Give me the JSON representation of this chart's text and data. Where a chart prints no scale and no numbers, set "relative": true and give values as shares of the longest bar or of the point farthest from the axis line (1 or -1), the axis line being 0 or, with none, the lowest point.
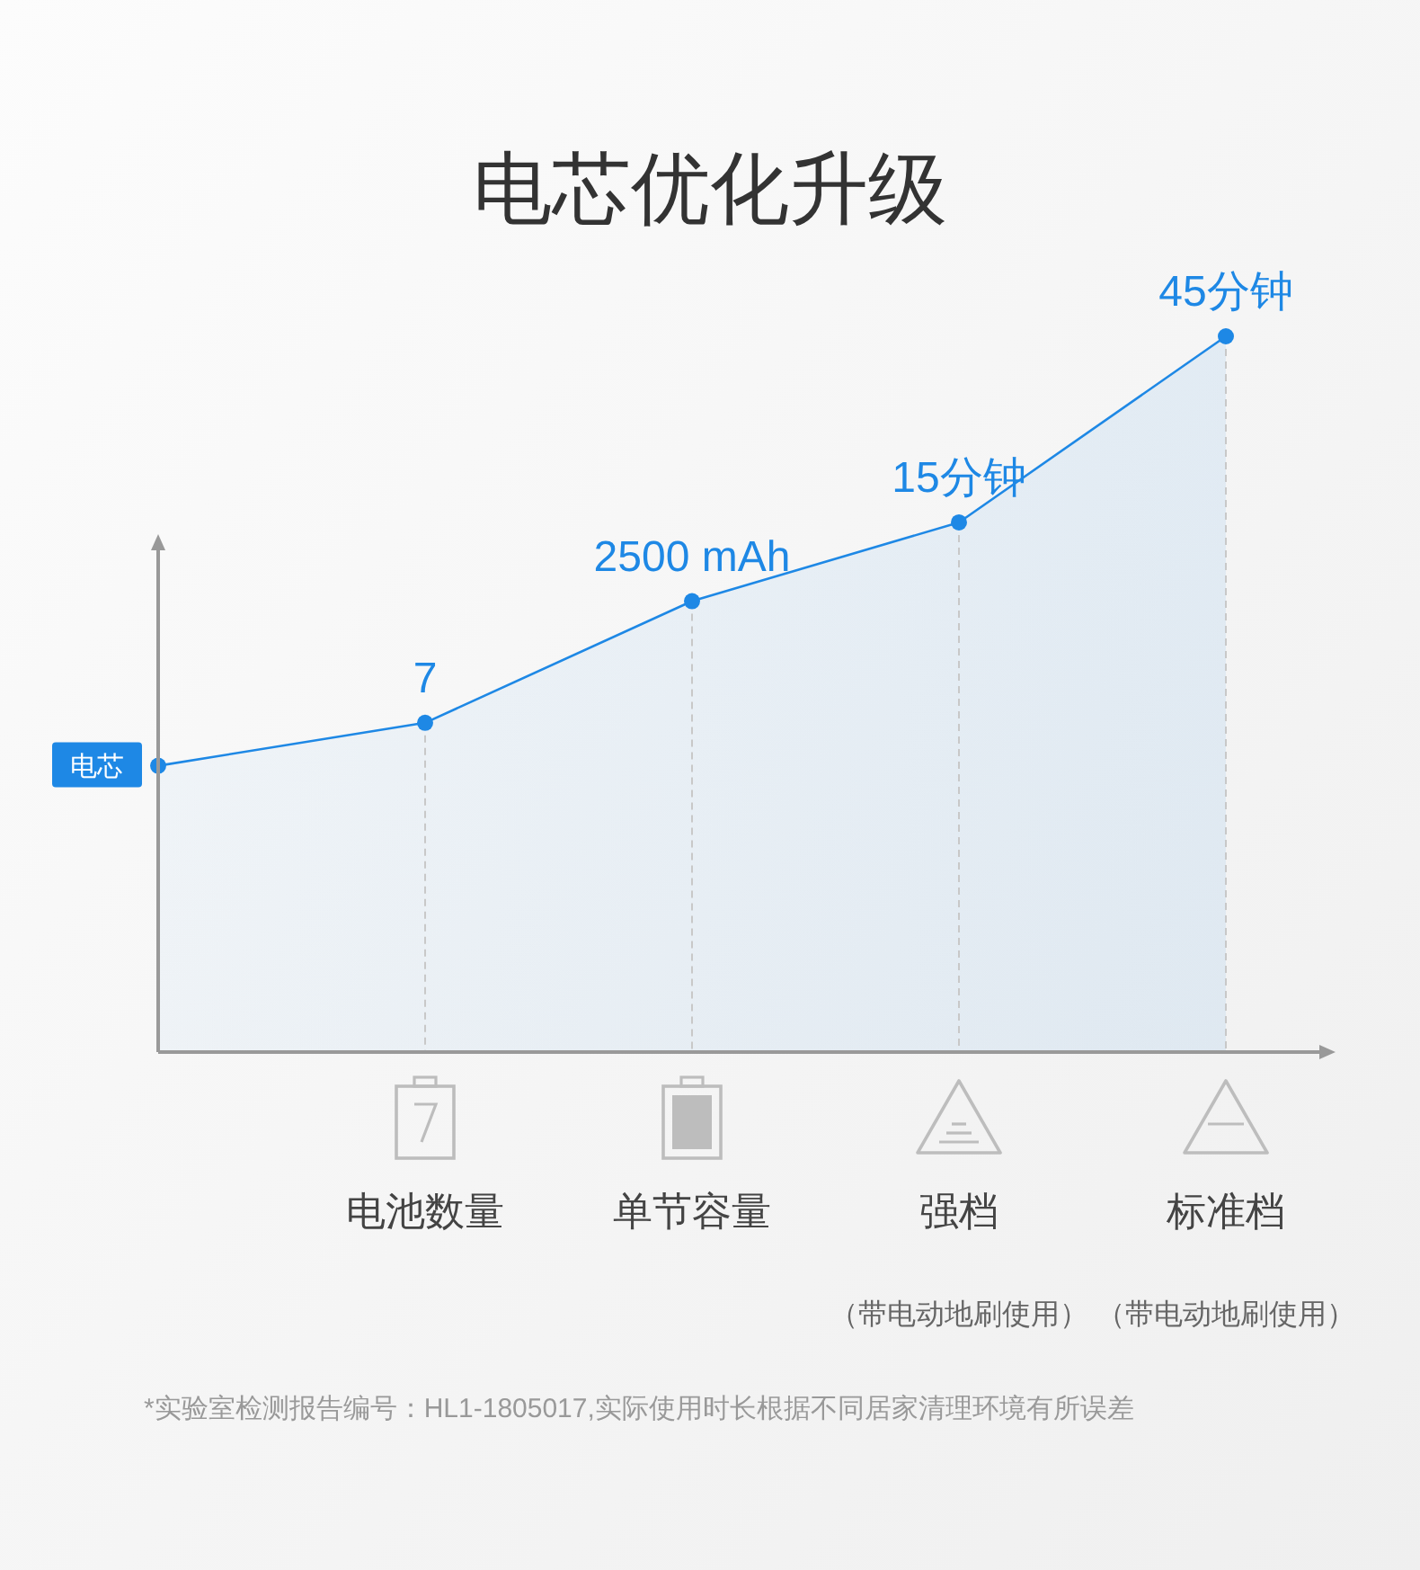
{
  "chart_data": {
    "type": "area",
    "title": "电芯优化升级",
    "categories": [
      null,
      "电池数量",
      "单节容量",
      "强档",
      "标准档"
    ],
    "relative": true,
    "marker": "circle",
    "series": [
      {
        "color": "#1e88e5",
        "values": [
          0.4,
          0.46,
          0.63,
          0.74,
          1
        ]
      }
    ],
    "annotations": [
      "电芯",
      {
        "text": "7",
        "x": "电池数量",
        "y": 0.46
      },
      {
        "text": "2500 mAh",
        "x": "单节容量",
        "y": 0.63
      },
      {
        "text": "15分钟",
        "x": "强档",
        "y": 0.74
      },
      {
        "text": "45分钟",
        "x": "标准档",
        "y": 1
      },
      "（带电动地刷使用）",
      "（带电动地刷使用）",
      "*实验室检测报告编号：HL1-1805017,实际使用时长根据不同居家清理环境有所误差"
    ]
  }
}
